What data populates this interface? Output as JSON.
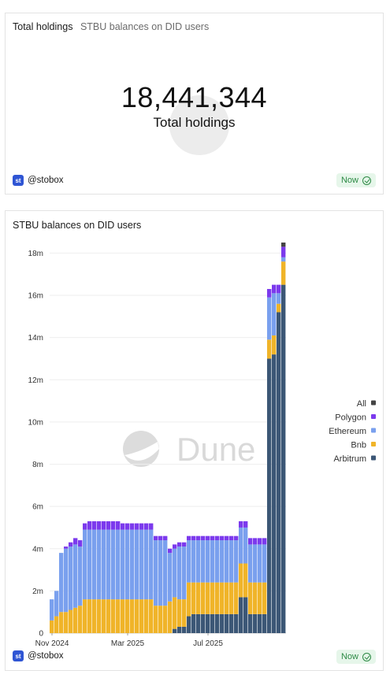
{
  "counter_card": {
    "title": "Total holdings",
    "subtitle": "STBU balances on DID users",
    "value": "18,441,344",
    "value_label": "Total holdings",
    "user": "@stobox",
    "badge": "Now",
    "logo_text": "st"
  },
  "chart_card": {
    "title": "STBU balances on DID users",
    "user": "@stobox",
    "badge": "Now",
    "logo_text": "st",
    "watermark": "Dune"
  },
  "colors": {
    "All": "#444444",
    "Polygon": "#7c3aed",
    "Ethereum": "#7aa0ee",
    "Bnb": "#f0b429",
    "Arbitrum": "#3c5776",
    "grid": "#eeeeee",
    "badge_bg": "#e6f6ea",
    "badge_text": "#2d8a45",
    "brand": "#2f55d4"
  },
  "chart_data": {
    "type": "bar",
    "stacked": true,
    "title": "STBU balances on DID users",
    "xlabel": "",
    "ylabel": "",
    "ylim": [
      0,
      18500000
    ],
    "yticks": [
      0,
      2000000,
      4000000,
      6000000,
      8000000,
      10000000,
      12000000,
      14000000,
      16000000,
      18000000
    ],
    "ytick_labels": [
      "0",
      "2m",
      "4m",
      "6m",
      "8m",
      "10m",
      "12m",
      "14m",
      "16m",
      "18m"
    ],
    "xtick_labels": [
      "Nov 2024",
      "Mar 2025",
      "Jul 2025"
    ],
    "xtick_index": [
      0,
      16,
      33
    ],
    "legend": [
      "All",
      "Polygon",
      "Ethereum",
      "Bnb",
      "Arbitrum"
    ],
    "legend_position": "right",
    "grid": true,
    "series": [
      {
        "name": "Arbitrum",
        "values": [
          0,
          0,
          0,
          0,
          0,
          0,
          0,
          0,
          0,
          0,
          0,
          0,
          0,
          0,
          0,
          0,
          0,
          0,
          0,
          0,
          0,
          0,
          0,
          0,
          0,
          0,
          0.2,
          0.3,
          0.3,
          0.8,
          0.9,
          0.9,
          0.9,
          0.9,
          0.9,
          0.9,
          0.9,
          0.9,
          0.9,
          0.9,
          1.7,
          1.7,
          0.9,
          0.9,
          0.9,
          0.9,
          13,
          13.2,
          15.2,
          16.5
        ]
      },
      {
        "name": "Bnb",
        "values": [
          0.6,
          0.8,
          1.0,
          1.0,
          1.1,
          1.2,
          1.3,
          1.6,
          1.6,
          1.6,
          1.6,
          1.6,
          1.6,
          1.6,
          1.6,
          1.6,
          1.6,
          1.6,
          1.6,
          1.6,
          1.6,
          1.6,
          1.3,
          1.3,
          1.3,
          1.5,
          1.5,
          1.3,
          1.3,
          1.6,
          1.5,
          1.5,
          1.5,
          1.5,
          1.5,
          1.5,
          1.5,
          1.5,
          1.5,
          1.5,
          1.6,
          1.6,
          1.5,
          1.5,
          1.5,
          1.5,
          0.9,
          0.9,
          0.4,
          1.1
        ]
      },
      {
        "name": "Ethereum",
        "values": [
          1.0,
          1.2,
          2.8,
          3.0,
          3.0,
          3.0,
          2.8,
          3.3,
          3.3,
          3.3,
          3.3,
          3.3,
          3.3,
          3.3,
          3.3,
          3.3,
          3.3,
          3.3,
          3.3,
          3.3,
          3.3,
          3.3,
          3.1,
          3.1,
          3.1,
          2.3,
          2.3,
          2.5,
          2.5,
          2.0,
          2.0,
          2.0,
          2.0,
          2.0,
          2.0,
          2.0,
          2.0,
          2.0,
          2.0,
          2.0,
          1.7,
          1.7,
          1.8,
          1.8,
          1.8,
          1.8,
          2.0,
          2.0,
          0.5,
          0.2
        ]
      },
      {
        "name": "Polygon",
        "values": [
          0,
          0,
          0,
          0.1,
          0.2,
          0.3,
          0.3,
          0.3,
          0.4,
          0.4,
          0.4,
          0.4,
          0.4,
          0.4,
          0.4,
          0.3,
          0.3,
          0.3,
          0.3,
          0.3,
          0.3,
          0.3,
          0.2,
          0.2,
          0.2,
          0.2,
          0.2,
          0.2,
          0.2,
          0.2,
          0.2,
          0.2,
          0.2,
          0.2,
          0.2,
          0.2,
          0.2,
          0.2,
          0.2,
          0.2,
          0.3,
          0.3,
          0.3,
          0.3,
          0.3,
          0.3,
          0.4,
          0.4,
          0.4,
          0.5
        ]
      },
      {
        "name": "All",
        "values": [
          0,
          0,
          0,
          0,
          0,
          0,
          0,
          0,
          0,
          0,
          0,
          0,
          0,
          0,
          0,
          0,
          0,
          0,
          0,
          0,
          0,
          0,
          0,
          0,
          0,
          0,
          0,
          0,
          0,
          0,
          0,
          0,
          0,
          0,
          0,
          0,
          0,
          0,
          0,
          0,
          0,
          0,
          0,
          0,
          0,
          0,
          0,
          0,
          0,
          0.2
        ]
      }
    ],
    "value_unit": "millions"
  }
}
